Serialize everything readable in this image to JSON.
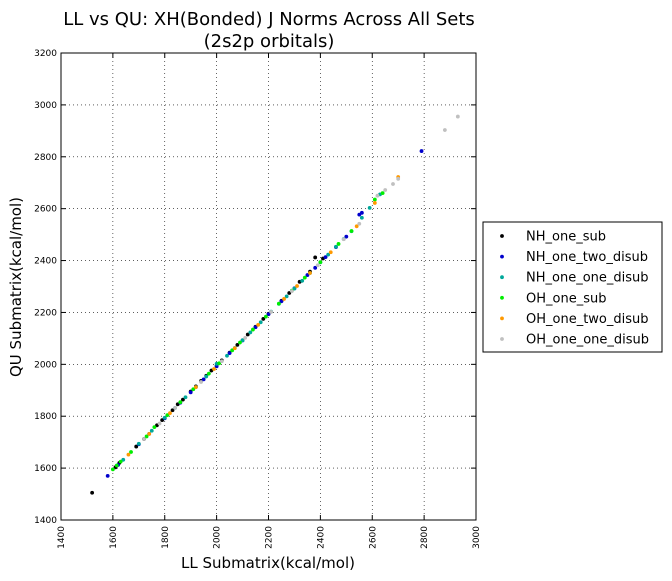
{
  "chart_data": {
    "type": "scatter",
    "title_line1": "LL vs QU: XH(Bonded) J Norms Across All Sets",
    "title_line2": "(2s2p orbitals)",
    "xlabel": "LL Submatrix(kcal/mol)",
    "ylabel": "QU Submatrix(kcal/mol)",
    "xlim": [
      1400,
      3000
    ],
    "ylim": [
      1400,
      3200
    ],
    "xticks": [
      "1400",
      "1600",
      "1800",
      "2000",
      "2200",
      "2400",
      "2600",
      "2800",
      "3000"
    ],
    "yticks": [
      "1400",
      "1600",
      "1800",
      "2000",
      "2200",
      "2400",
      "2600",
      "2800",
      "3000",
      "3200"
    ],
    "grid": true,
    "legend_position": "right-outside",
    "series": [
      {
        "name": "NH_one_sub",
        "color": "#000000",
        "points": [
          [
            1520,
            1505
          ],
          [
            1610,
            1603
          ],
          [
            1625,
            1620
          ],
          [
            1690,
            1683
          ],
          [
            1720,
            1712
          ],
          [
            1770,
            1765
          ],
          [
            1790,
            1785
          ],
          [
            1800,
            1793
          ],
          [
            1830,
            1823
          ],
          [
            1850,
            1846
          ],
          [
            1870,
            1864
          ],
          [
            1900,
            1895
          ],
          [
            1920,
            1915
          ],
          [
            1940,
            1936
          ],
          [
            1960,
            1956
          ],
          [
            1980,
            1976
          ],
          [
            2000,
            1994
          ],
          [
            2020,
            2015
          ],
          [
            2050,
            2045
          ],
          [
            2080,
            2075
          ],
          [
            2120,
            2115
          ],
          [
            2150,
            2145
          ],
          [
            2180,
            2175
          ],
          [
            2200,
            2195
          ],
          [
            2250,
            2245
          ],
          [
            2280,
            2275
          ],
          [
            2320,
            2318
          ],
          [
            2360,
            2357
          ],
          [
            2380,
            2412
          ],
          [
            2410,
            2408
          ]
        ]
      },
      {
        "name": "NH_one_two_disub",
        "color": "#0000cc",
        "points": [
          [
            1580,
            1570
          ],
          [
            1620,
            1612
          ],
          [
            1700,
            1692
          ],
          [
            1740,
            1732
          ],
          [
            1800,
            1792
          ],
          [
            1860,
            1852
          ],
          [
            1900,
            1892
          ],
          [
            1950,
            1942
          ],
          [
            2000,
            1992
          ],
          [
            2050,
            2043
          ],
          [
            2100,
            2092
          ],
          [
            2150,
            2143
          ],
          [
            2200,
            2193
          ],
          [
            2250,
            2243
          ],
          [
            2300,
            2293
          ],
          [
            2350,
            2344
          ],
          [
            2380,
            2372
          ],
          [
            2420,
            2413
          ],
          [
            2460,
            2452
          ],
          [
            2500,
            2492
          ],
          [
            2550,
            2577
          ],
          [
            2560,
            2584
          ],
          [
            2790,
            2822
          ]
        ]
      },
      {
        "name": "NH_one_one_disub",
        "color": "#00a89a",
        "points": [
          [
            1640,
            1632
          ],
          [
            1700,
            1694
          ],
          [
            1750,
            1744
          ],
          [
            1800,
            1794
          ],
          [
            1840,
            1832
          ],
          [
            1880,
            1873
          ],
          [
            1920,
            1912
          ],
          [
            1960,
            1953
          ],
          [
            2000,
            2002
          ],
          [
            2040,
            2033
          ],
          [
            2070,
            2063
          ],
          [
            2100,
            2093
          ],
          [
            2130,
            2123
          ],
          [
            2170,
            2162
          ],
          [
            2210,
            2203
          ],
          [
            2240,
            2233
          ],
          [
            2270,
            2262
          ],
          [
            2300,
            2292
          ],
          [
            2330,
            2322
          ],
          [
            2360,
            2352
          ],
          [
            2400,
            2393
          ],
          [
            2430,
            2423
          ],
          [
            2460,
            2453
          ],
          [
            2490,
            2483
          ],
          [
            2520,
            2513
          ],
          [
            2560,
            2565
          ],
          [
            2590,
            2603
          ],
          [
            2630,
            2655
          ]
        ]
      },
      {
        "name": "OH_one_sub",
        "color": "#00ee00",
        "points": [
          [
            1600,
            1595
          ],
          [
            1615,
            1610
          ],
          [
            1630,
            1625
          ],
          [
            1670,
            1662
          ],
          [
            1730,
            1722
          ],
          [
            1760,
            1758
          ],
          [
            1810,
            1804
          ],
          [
            1860,
            1854
          ],
          [
            1910,
            1904
          ],
          [
            1970,
            1964
          ],
          [
            2010,
            2004
          ],
          [
            2060,
            2054
          ],
          [
            2090,
            2084
          ],
          [
            2140,
            2134
          ],
          [
            2190,
            2184
          ],
          [
            2240,
            2234
          ],
          [
            2290,
            2284
          ],
          [
            2340,
            2334
          ],
          [
            2400,
            2394
          ],
          [
            2470,
            2464
          ],
          [
            2520,
            2514
          ],
          [
            2610,
            2635
          ],
          [
            2640,
            2660
          ]
        ]
      },
      {
        "name": "OH_one_two_disub",
        "color": "#ff9900",
        "points": [
          [
            1660,
            1652
          ],
          [
            1740,
            1732
          ],
          [
            1820,
            1812
          ],
          [
            1920,
            1912
          ],
          [
            1990,
            1982
          ],
          [
            2070,
            2062
          ],
          [
            2160,
            2152
          ],
          [
            2260,
            2252
          ],
          [
            2310,
            2302
          ],
          [
            2360,
            2352
          ],
          [
            2440,
            2432
          ],
          [
            2540,
            2532
          ],
          [
            2610,
            2622
          ],
          [
            2700,
            2722
          ]
        ]
      },
      {
        "name": "OH_one_one_disub",
        "color": "#c0c0c0",
        "points": [
          [
            1720,
            1712
          ],
          [
            1780,
            1772
          ],
          [
            1840,
            1832
          ],
          [
            1940,
            1932
          ],
          [
            2020,
            2012
          ],
          [
            2110,
            2102
          ],
          [
            2210,
            2202
          ],
          [
            2290,
            2282
          ],
          [
            2390,
            2382
          ],
          [
            2490,
            2482
          ],
          [
            2550,
            2542
          ],
          [
            2620,
            2650
          ],
          [
            2650,
            2672
          ],
          [
            2680,
            2695
          ],
          [
            2700,
            2715
          ],
          [
            2880,
            2903
          ],
          [
            2930,
            2955
          ]
        ]
      }
    ]
  }
}
